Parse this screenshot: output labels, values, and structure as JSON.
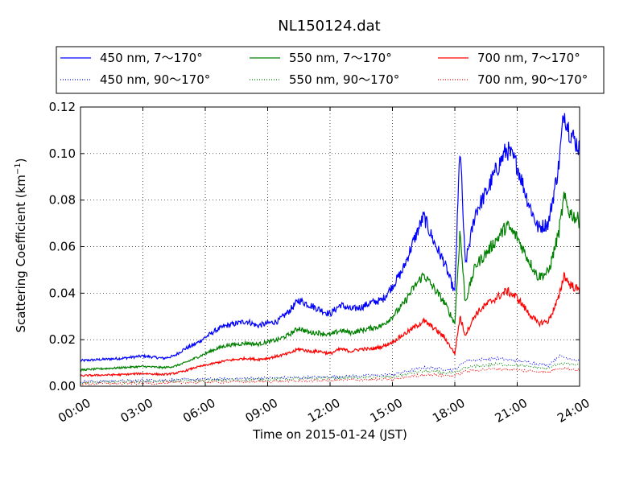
{
  "chart_data": {
    "type": "line",
    "title": "NL150124.dat",
    "xlabel": "Time on 2015-01-24 (JST)",
    "ylabel": "Scattering Coefficient (km",
    "ylabel_sup": "−1",
    "ylabel_close": ")",
    "xlim_hours": [
      0,
      24
    ],
    "ylim": [
      0.0,
      0.12
    ],
    "x_ticks": [
      "00:00",
      "03:00",
      "06:00",
      "09:00",
      "12:00",
      "15:00",
      "18:00",
      "21:00",
      "24:00"
    ],
    "y_ticks": [
      "0.00",
      "0.02",
      "0.04",
      "0.06",
      "0.08",
      "0.10",
      "0.12"
    ],
    "grid": true,
    "legend_placement": "top, above plot, 3 columns",
    "series": [
      {
        "name": "450 nm, 7～170°",
        "color": "#0000ff",
        "style": "solid",
        "x": [
          "00:00",
          "01:00",
          "02:00",
          "03:00",
          "04:00",
          "04:30",
          "05:00",
          "05:30",
          "06:00",
          "06:30",
          "07:00",
          "07:30",
          "08:00",
          "08:30",
          "09:00",
          "09:30",
          "10:00",
          "10:30",
          "11:00",
          "11:30",
          "12:00",
          "12:30",
          "13:00",
          "13:30",
          "14:00",
          "14:30",
          "15:00",
          "15:30",
          "16:00",
          "16:30",
          "17:00",
          "17:30",
          "18:00",
          "18:15",
          "18:30",
          "19:00",
          "19:30",
          "20:00",
          "20:30",
          "21:00",
          "21:30",
          "22:00",
          "22:30",
          "23:00",
          "23:15",
          "23:30",
          "24:00"
        ],
        "values": [
          0.011,
          0.0115,
          0.012,
          0.013,
          0.012,
          0.013,
          0.016,
          0.018,
          0.021,
          0.024,
          0.026,
          0.027,
          0.028,
          0.026,
          0.027,
          0.028,
          0.032,
          0.037,
          0.035,
          0.033,
          0.031,
          0.035,
          0.033,
          0.034,
          0.036,
          0.037,
          0.043,
          0.05,
          0.062,
          0.073,
          0.062,
          0.053,
          0.04,
          0.104,
          0.052,
          0.075,
          0.083,
          0.093,
          0.102,
          0.095,
          0.08,
          0.068,
          0.07,
          0.095,
          0.118,
          0.11,
          0.102
        ]
      },
      {
        "name": "450 nm, 90～170°",
        "color": "#0000ff",
        "style": "dotted",
        "x": [
          "00:00",
          "03:00",
          "06:00",
          "09:00",
          "12:00",
          "15:00",
          "16:30",
          "18:00",
          "18:30",
          "20:00",
          "21:00",
          "22:30",
          "23:00",
          "24:00"
        ],
        "values": [
          0.002,
          0.0025,
          0.003,
          0.0035,
          0.004,
          0.005,
          0.008,
          0.007,
          0.011,
          0.012,
          0.011,
          0.009,
          0.013,
          0.011
        ]
      },
      {
        "name": "550 nm, 7～170°",
        "color": "#008000",
        "style": "solid",
        "x": [
          "00:00",
          "01:00",
          "02:00",
          "03:00",
          "04:00",
          "04:30",
          "05:00",
          "05:30",
          "06:00",
          "06:30",
          "07:00",
          "07:30",
          "08:00",
          "08:30",
          "09:00",
          "09:30",
          "10:00",
          "10:30",
          "11:00",
          "11:30",
          "12:00",
          "12:30",
          "13:00",
          "13:30",
          "14:00",
          "14:30",
          "15:00",
          "15:30",
          "16:00",
          "16:30",
          "17:00",
          "17:30",
          "18:00",
          "18:15",
          "18:30",
          "19:00",
          "19:30",
          "20:00",
          "20:30",
          "21:00",
          "21:30",
          "22:00",
          "22:30",
          "23:00",
          "23:15",
          "23:30",
          "24:00"
        ],
        "values": [
          0.007,
          0.0075,
          0.008,
          0.0085,
          0.008,
          0.0085,
          0.01,
          0.012,
          0.014,
          0.016,
          0.0175,
          0.018,
          0.0185,
          0.018,
          0.019,
          0.02,
          0.022,
          0.025,
          0.023,
          0.023,
          0.022,
          0.024,
          0.023,
          0.024,
          0.025,
          0.026,
          0.03,
          0.035,
          0.042,
          0.048,
          0.042,
          0.036,
          0.027,
          0.067,
          0.036,
          0.052,
          0.057,
          0.063,
          0.069,
          0.064,
          0.055,
          0.047,
          0.049,
          0.066,
          0.081,
          0.075,
          0.071
        ]
      },
      {
        "name": "550 nm, 90～170°",
        "color": "#008000",
        "style": "dotted",
        "x": [
          "00:00",
          "03:00",
          "06:00",
          "09:00",
          "12:00",
          "15:00",
          "16:30",
          "18:00",
          "18:30",
          "20:00",
          "21:00",
          "22:30",
          "23:00",
          "24:00"
        ],
        "values": [
          0.0015,
          0.002,
          0.0025,
          0.003,
          0.0035,
          0.004,
          0.0065,
          0.0055,
          0.008,
          0.0095,
          0.009,
          0.0075,
          0.01,
          0.009
        ]
      },
      {
        "name": "700 nm, 7～170°",
        "color": "#ff0000",
        "style": "solid",
        "x": [
          "00:00",
          "01:00",
          "02:00",
          "03:00",
          "04:00",
          "04:30",
          "05:00",
          "05:30",
          "06:00",
          "06:30",
          "07:00",
          "07:30",
          "08:00",
          "08:30",
          "09:00",
          "09:30",
          "10:00",
          "10:30",
          "11:00",
          "11:30",
          "12:00",
          "12:30",
          "13:00",
          "13:30",
          "14:00",
          "14:30",
          "15:00",
          "15:30",
          "16:00",
          "16:30",
          "17:00",
          "17:30",
          "18:00",
          "18:15",
          "18:30",
          "19:00",
          "19:30",
          "20:00",
          "20:30",
          "21:00",
          "21:30",
          "22:00",
          "22:30",
          "23:00",
          "23:15",
          "23:30",
          "24:00"
        ],
        "values": [
          0.0045,
          0.0048,
          0.005,
          0.0055,
          0.005,
          0.0055,
          0.0065,
          0.008,
          0.009,
          0.01,
          0.011,
          0.0115,
          0.012,
          0.0115,
          0.012,
          0.013,
          0.014,
          0.016,
          0.015,
          0.015,
          0.014,
          0.016,
          0.015,
          0.016,
          0.016,
          0.017,
          0.019,
          0.022,
          0.025,
          0.028,
          0.025,
          0.021,
          0.014,
          0.03,
          0.022,
          0.031,
          0.035,
          0.038,
          0.041,
          0.038,
          0.032,
          0.027,
          0.028,
          0.038,
          0.048,
          0.044,
          0.041
        ]
      },
      {
        "name": "700 nm, 90～170°",
        "color": "#ff0000",
        "style": "dotted",
        "x": [
          "00:00",
          "03:00",
          "06:00",
          "09:00",
          "12:00",
          "15:00",
          "16:30",
          "18:00",
          "18:30",
          "20:00",
          "21:00",
          "22:30",
          "23:00",
          "24:00"
        ],
        "values": [
          0.001,
          0.0013,
          0.0018,
          0.002,
          0.0025,
          0.003,
          0.005,
          0.0045,
          0.0065,
          0.0075,
          0.007,
          0.006,
          0.008,
          0.007
        ]
      }
    ]
  }
}
